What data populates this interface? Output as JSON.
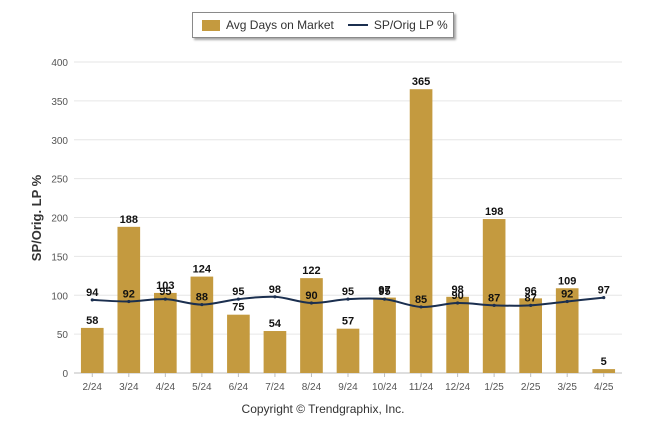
{
  "legend": {
    "bar_label": "Avg Days on Market",
    "line_label": "SP/Orig LP %"
  },
  "copyright": "Copyright © Trendgraphix, Inc.",
  "colors": {
    "bar": "#C49A3F",
    "line": "#1B2F4F",
    "grid": "#E6E6E6",
    "axis_text": "#555555"
  },
  "chart_data": {
    "type": "bar",
    "categories": [
      "2/24",
      "3/24",
      "4/24",
      "5/24",
      "6/24",
      "7/24",
      "8/24",
      "9/24",
      "10/24",
      "11/24",
      "12/24",
      "1/25",
      "2/25",
      "3/25",
      "4/25"
    ],
    "ylabel": "SP/Orig. LP %",
    "ylim": [
      0,
      400
    ],
    "yticks": [
      0,
      50,
      100,
      150,
      200,
      250,
      300,
      350,
      400
    ],
    "grid": true,
    "legend_position": "top",
    "series": [
      {
        "name": "Avg Days on Market",
        "type": "bar",
        "values": [
          58,
          188,
          103,
          124,
          75,
          54,
          122,
          57,
          97,
          365,
          98,
          198,
          96,
          109,
          5
        ]
      },
      {
        "name": "SP/Orig LP %",
        "type": "line",
        "values": [
          94,
          92,
          95,
          88,
          95,
          98,
          90,
          95,
          95,
          85,
          90,
          87,
          87,
          92,
          97
        ]
      }
    ]
  }
}
